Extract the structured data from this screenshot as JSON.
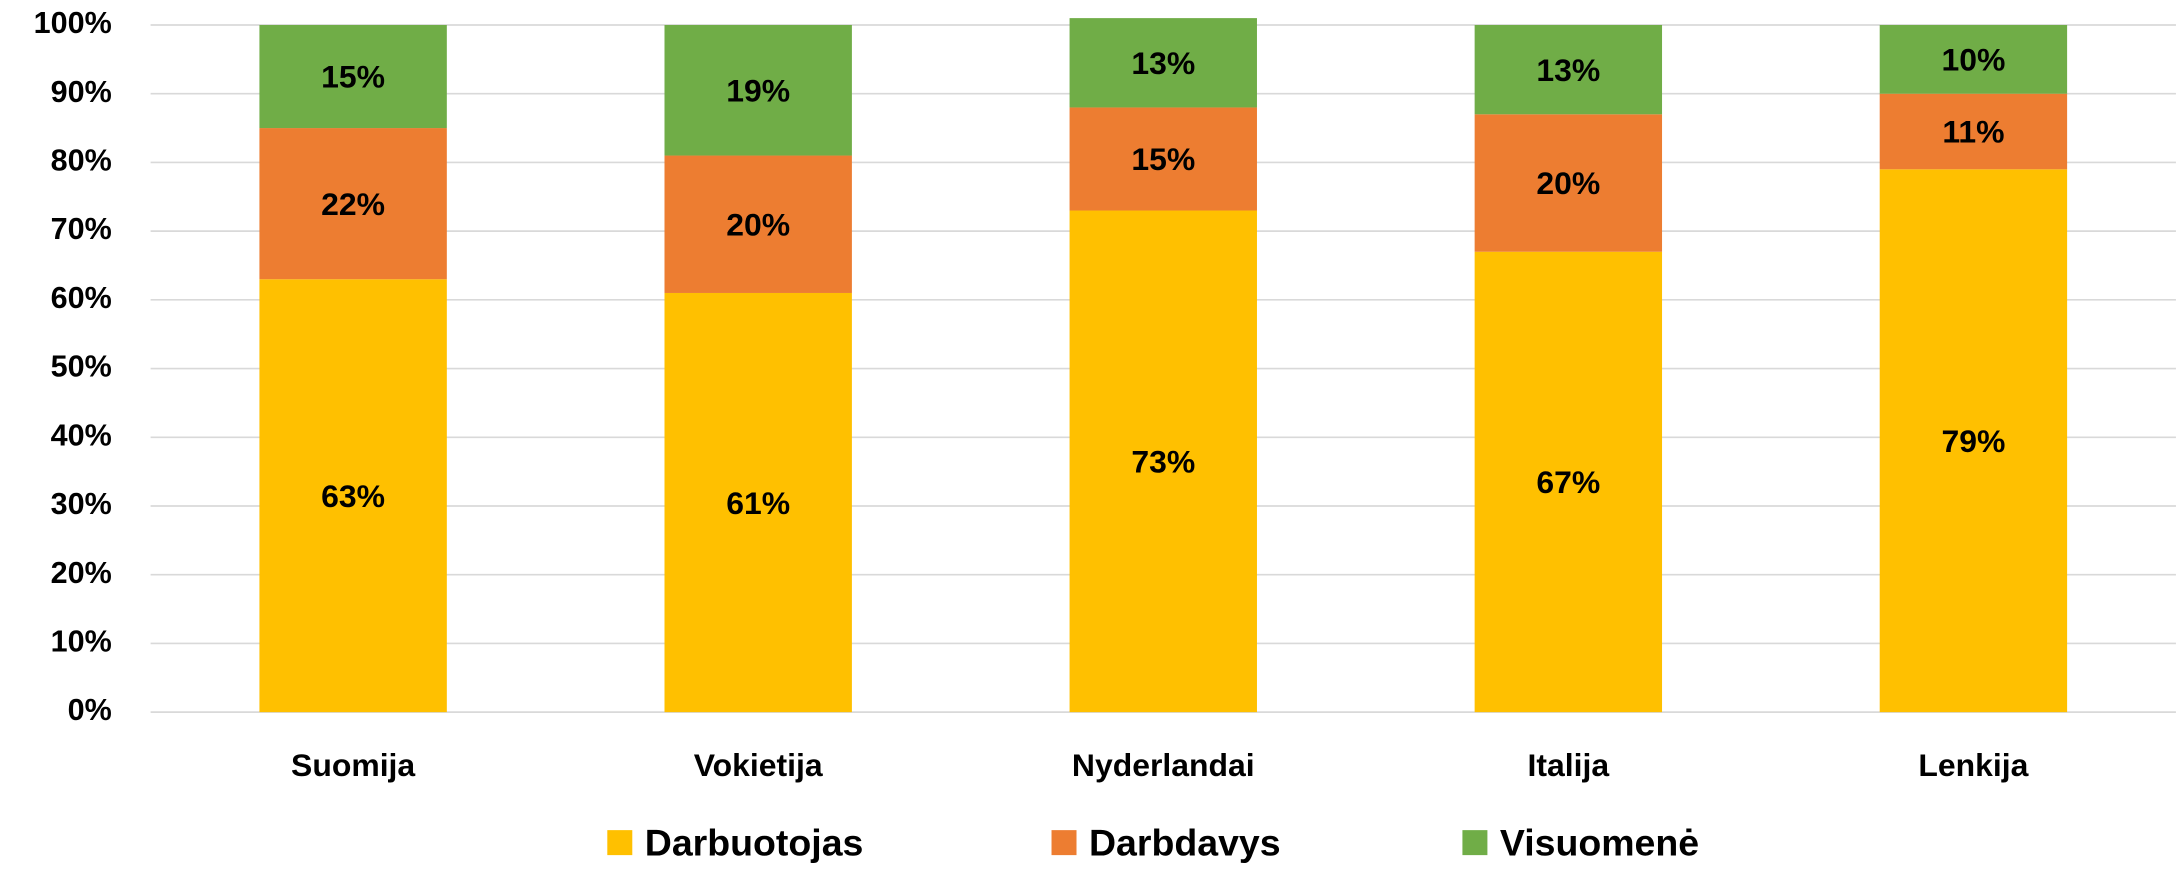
{
  "chart_data": {
    "type": "stacked_bar",
    "categories": [
      "Suomija",
      "Vokietija",
      "Nyderlandai",
      "Italija",
      "Lenkija"
    ],
    "series": [
      {
        "name": "Darbuotojas",
        "color": "#ffc000",
        "values": [
          63,
          61,
          73,
          67,
          79
        ],
        "value_labels": [
          "63%",
          "61%",
          "73%",
          "67%",
          "79%"
        ]
      },
      {
        "name": "Darbdavys",
        "color": "#ed7d31",
        "values": [
          22,
          20,
          15,
          20,
          11
        ],
        "value_labels": [
          "22%",
          "20%",
          "15%",
          "20%",
          "11%"
        ]
      },
      {
        "name": "Visuomenė",
        "color": "#70ad47",
        "values": [
          15,
          19,
          13,
          13,
          10
        ],
        "value_labels": [
          "15%",
          "19%",
          "13%",
          "13%",
          "10%"
        ]
      }
    ],
    "ylim": [
      0,
      100
    ],
    "yticks": [
      {
        "value": 0,
        "label": "0%"
      },
      {
        "value": 10,
        "label": "10%"
      },
      {
        "value": 20,
        "label": "20%"
      },
      {
        "value": 30,
        "label": "30%"
      },
      {
        "value": 40,
        "label": "40%"
      },
      {
        "value": 50,
        "label": "50%"
      },
      {
        "value": 60,
        "label": "60%"
      },
      {
        "value": 70,
        "label": "70%"
      },
      {
        "value": 80,
        "label": "80%"
      },
      {
        "value": 90,
        "label": "90%"
      },
      {
        "value": 100,
        "label": "100%"
      }
    ],
    "grid": true,
    "legend": "bottom"
  }
}
